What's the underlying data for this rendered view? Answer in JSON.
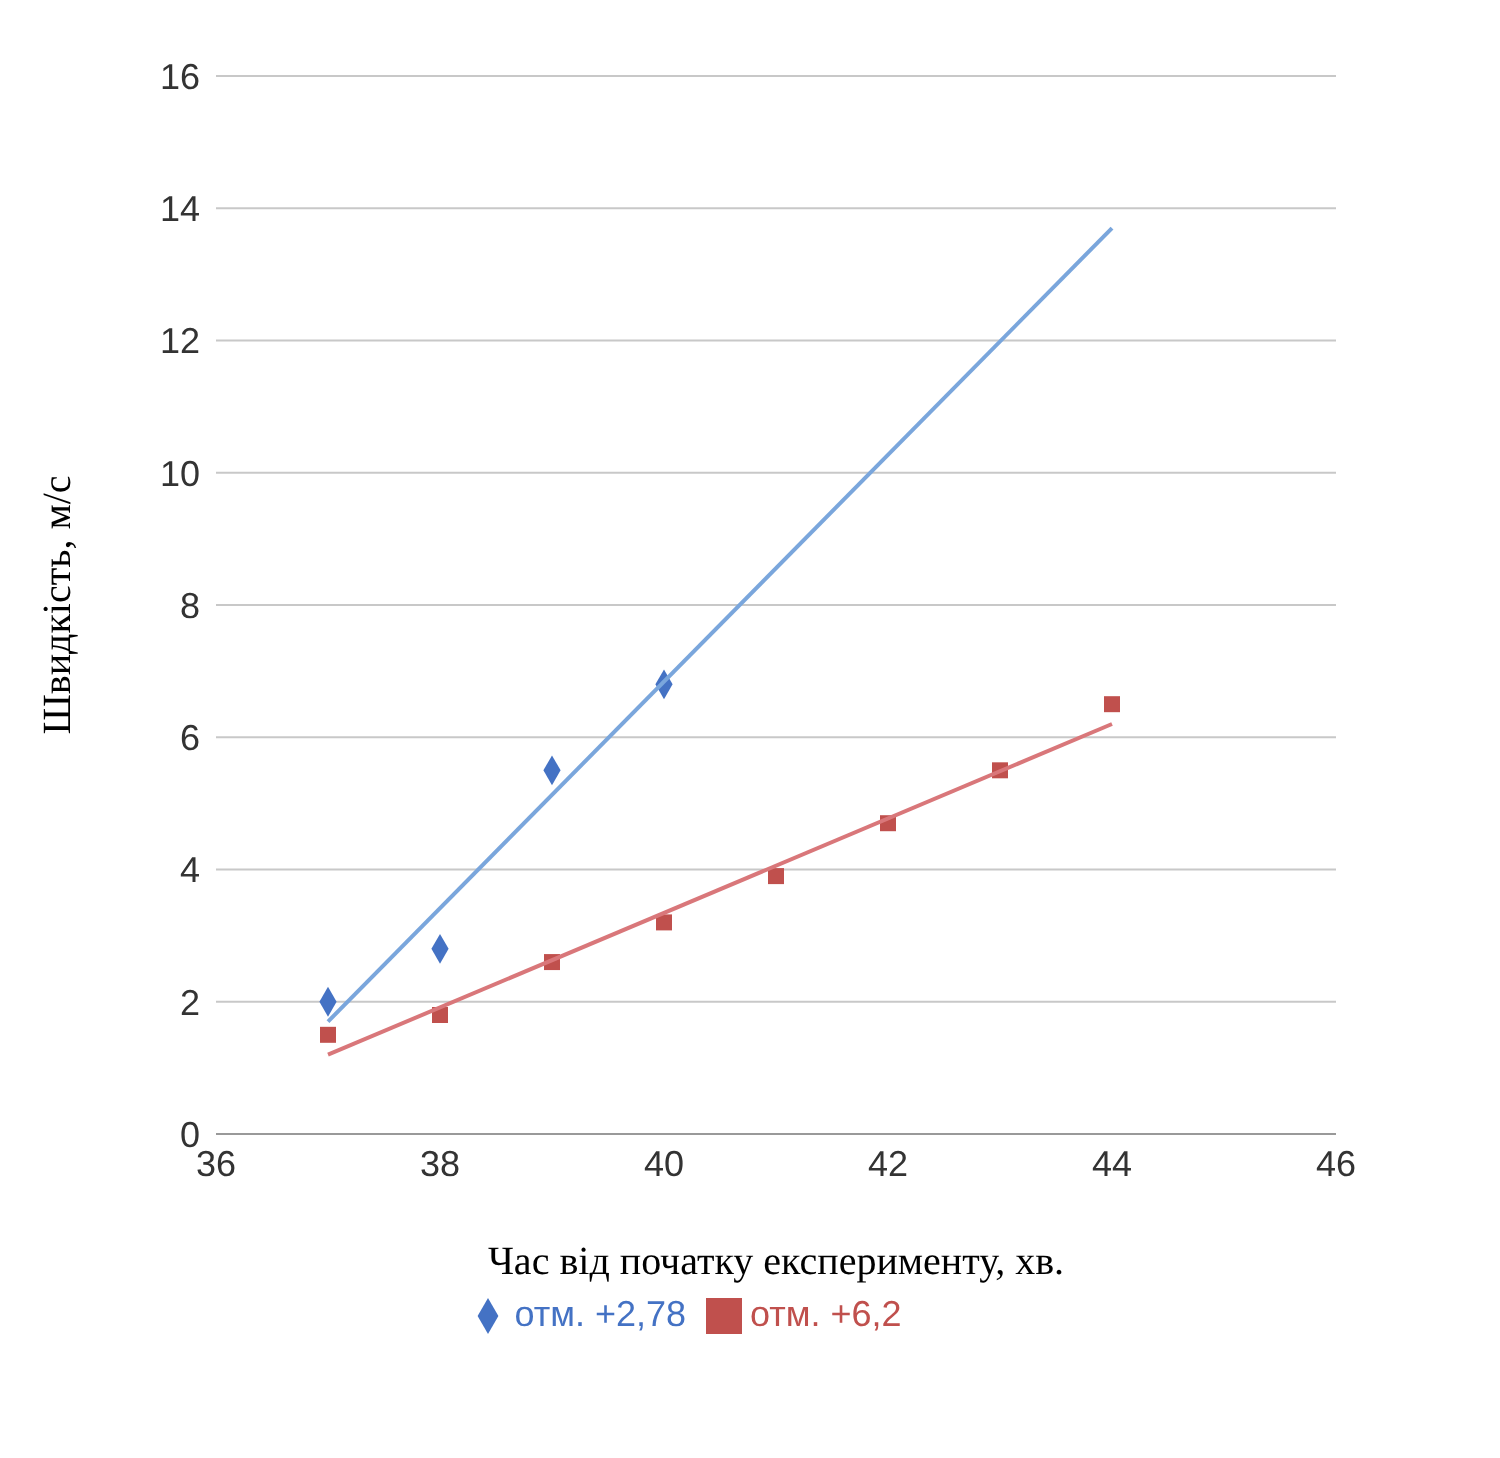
{
  "chart_data": {
    "type": "scatter",
    "xlabel": "Час від початку експерименту, хв.",
    "ylabel": "Швидкість, м/с",
    "xlim": [
      36,
      46
    ],
    "xticks": [
      36,
      38,
      40,
      42,
      44,
      46
    ],
    "ylim": [
      0,
      16
    ],
    "yticks": [
      0,
      2,
      4,
      6,
      8,
      10,
      12,
      14,
      16
    ],
    "grid": "y",
    "legend": "bottom",
    "series": [
      {
        "name": "отм. +2,78",
        "color": "#4472c4",
        "marker": "diamond",
        "x": [
          37,
          38,
          39,
          40
        ],
        "values": [
          2.0,
          2.8,
          5.5,
          6.8
        ]
      },
      {
        "name": "отм. +6,2",
        "color": "#c0504d",
        "marker": "square",
        "x": [
          37,
          38,
          39,
          40,
          41,
          42,
          43,
          44
        ],
        "values": [
          1.5,
          1.8,
          2.6,
          3.2,
          3.9,
          4.7,
          5.5,
          6.5
        ]
      },
      {
        "type": "line",
        "color": "#7aa6dc",
        "marker": "none",
        "x": [
          37,
          44
        ],
        "values": [
          1.7,
          13.7
        ]
      },
      {
        "type": "line",
        "color": "#d9777a",
        "marker": "none",
        "x": [
          37,
          44
        ],
        "values": [
          1.2,
          6.2
        ]
      }
    ]
  }
}
